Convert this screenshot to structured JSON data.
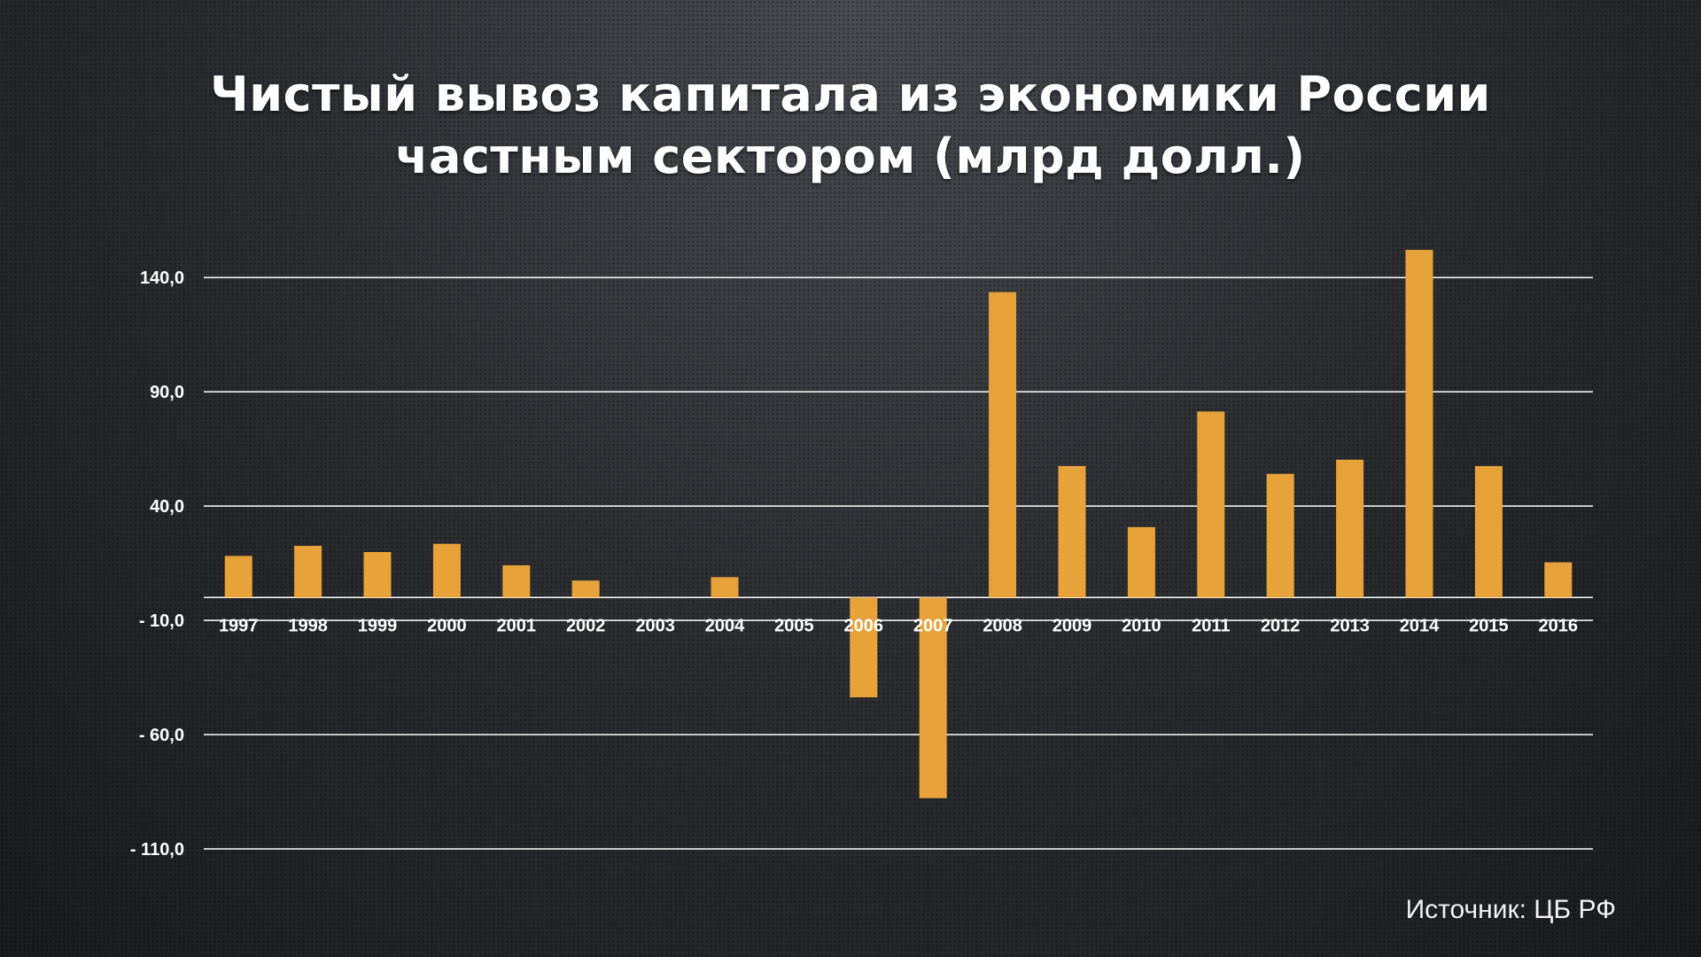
{
  "chart_data": {
    "type": "bar",
    "title_lines": [
      "Чистый вывоз капитала из экономики России",
      "частным сектором (млрд долл.)"
    ],
    "categories": [
      "1997",
      "1998",
      "1999",
      "2000",
      "2001",
      "2002",
      "2003",
      "2004",
      "2005",
      "2006",
      "2007",
      "2008",
      "2009",
      "2010",
      "2011",
      "2012",
      "2013",
      "2014",
      "2015",
      "2016"
    ],
    "values": [
      18.2,
      22.6,
      19.9,
      23.5,
      14.1,
      7.4,
      0,
      8.9,
      0,
      -43.7,
      -87.8,
      133.6,
      57.5,
      30.8,
      81.4,
      54.1,
      60.3,
      152.1,
      57.5,
      15.4
    ],
    "y_ticks": [
      140,
      90,
      40,
      -10,
      -60,
      -110
    ],
    "y_tick_labels": [
      "140,0",
      "90,0",
      "40,0",
      "- 10,0",
      "- 60,0",
      "- 110,0"
    ],
    "ylim": [
      -110,
      152.1
    ],
    "grid": true,
    "bar_color": "#e8a23a",
    "grid_color": "#ffffff"
  },
  "source": "Источник: ЦБ РФ"
}
